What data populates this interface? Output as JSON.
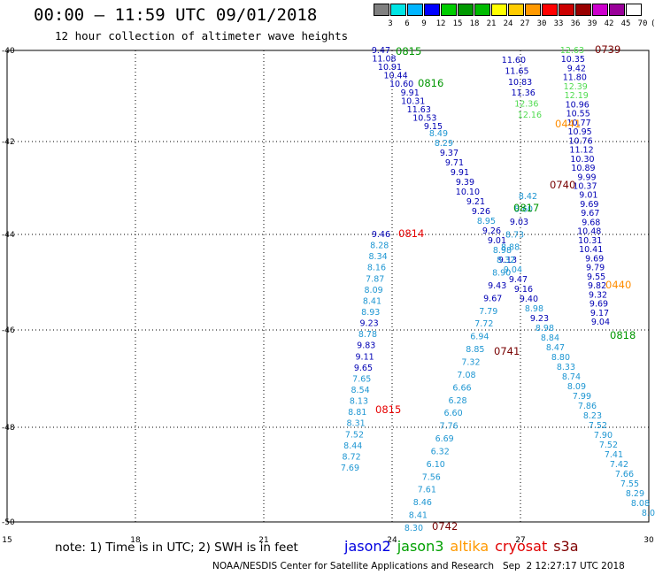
{
  "title": "00:00 – 11:59 UTC 09/01/2018",
  "subtitle": "12 hour collection of altimeter wave heights",
  "scale": {
    "labels": [
      "3",
      "6",
      "9",
      "12",
      "15",
      "18",
      "21",
      "24",
      "27",
      "30",
      "33",
      "36",
      "39",
      "42",
      "45",
      "70",
      "(ft)"
    ],
    "colors": [
      "#808080",
      "#00e5e5",
      "#00b5ff",
      "#0000ff",
      "#00cc00",
      "#009900",
      "#00bb00",
      "#ffff00",
      "#ffcc00",
      "#ff9900",
      "#ff0000",
      "#cc0000",
      "#990000",
      "#cc00cc",
      "#990099",
      "#ffffff"
    ]
  },
  "axes": {
    "x_ticks": [
      "15",
      "18",
      "21",
      "24",
      "27",
      "30"
    ],
    "y_ticks": [
      "-40",
      "-42",
      "-44",
      "-46",
      "-48",
      "-50"
    ]
  },
  "colors": {
    "jason2": "#0000b4",
    "jason3": "#009600",
    "altika": "#ff8c00",
    "cryosat": "#e60000",
    "s3a": "#780000",
    "light": "#1e96d2",
    "pale": "#50dc50"
  },
  "tracks": [
    {
      "id": "j2-0815-0816",
      "sat": "jason2",
      "shade": "dark",
      "time": "0815",
      "values": [
        "9.47",
        "11.08",
        "10.91",
        "10.44",
        "10.60",
        "9.91",
        "10.31",
        "11.63",
        "10.53",
        "9.15"
      ]
    },
    {
      "id": "j2-0816-cont",
      "sat": "jason2",
      "shade": "mixed",
      "time": "0816",
      "values": [
        "8.49",
        "8.29",
        "9.37",
        "9.71",
        "9.91",
        "9.39",
        "10.10",
        "9.21",
        "9.26",
        "8.95",
        "9.26",
        "9.01",
        "8.98",
        "9.13",
        "9.04",
        "9.47",
        "9.16",
        "9.40",
        "8.98",
        "9.23",
        "8.98",
        "8.84",
        "8.47",
        "8.80",
        "8.33",
        "8.74",
        "8.09",
        "7.99",
        "7.86",
        "8.23",
        "7.52",
        "7.90",
        "7.52",
        "7.41",
        "7.42",
        "7.66",
        "7.55",
        "8.29",
        "8.08",
        "8.0"
      ]
    },
    {
      "id": "s3a-0739",
      "sat": "s3a",
      "time": "0739",
      "values": [
        "12.63",
        "10.35",
        "9.42",
        "11.80",
        "12.39",
        "12.19",
        "10.96",
        "10.55",
        "10.77",
        "10.95",
        "10.76",
        "11.12",
        "10.30",
        "10.89",
        "9.99",
        "10.37",
        "9.01",
        "9.69",
        "9.67",
        "9.68",
        "10.48",
        "10.31",
        "10.41",
        "9.69",
        "9.79",
        "9.55",
        "9.82",
        "9.32",
        "9.69",
        "9.17",
        "9.04"
      ]
    },
    {
      "id": "s3a-0739-left",
      "sat": "s3a",
      "time": "0739",
      "values": [
        "11.60",
        "11.65",
        "10.83",
        "11.36",
        "12.36",
        "12.16"
      ]
    },
    {
      "id": "j2-0814",
      "sat": "jason2",
      "time": "0814",
      "values": [
        "9.46",
        "8.28",
        "8.34",
        "8.16",
        "7.87",
        "8.09",
        "8.41",
        "8.93",
        "9.23",
        "8.78",
        "9.83",
        "9.11",
        "9.65",
        "7.65",
        "8.54",
        "8.13",
        "8.81",
        "8.31",
        "7.52",
        "8.44",
        "8.72",
        "7.69"
      ]
    },
    {
      "id": "j2-0741",
      "sat": "jason2",
      "time": "0741",
      "values": [
        "8.42",
        "8.60",
        "9.03",
        "8.73",
        "8.88",
        "8.32",
        "8.90",
        "9.43",
        "9.67",
        "7.79",
        "7.72",
        "6.94",
        "8.85",
        "7.32",
        "7.08",
        "6.66",
        "6.28",
        "6.60",
        "7.76",
        "6.69",
        "6.32",
        "6.10",
        "7.56",
        "7.61",
        "8.46",
        "8.41",
        "8.30"
      ]
    }
  ],
  "time_labels": [
    {
      "text": "0815",
      "sat": "jason3"
    },
    {
      "text": "0816",
      "sat": "jason3"
    },
    {
      "text": "0739",
      "sat": "s3a"
    },
    {
      "text": "0441",
      "sat": "altika"
    },
    {
      "text": "0740",
      "sat": "s3a"
    },
    {
      "text": "0817",
      "sat": "jason3"
    },
    {
      "text": "0814",
      "sat": "cryosat"
    },
    {
      "text": "0440",
      "sat": "altika"
    },
    {
      "text": "0818",
      "sat": "jason3"
    },
    {
      "text": "0741",
      "sat": "s3a"
    },
    {
      "text": "0815",
      "sat": "cryosat"
    },
    {
      "text": "0742",
      "sat": "s3a"
    }
  ],
  "note": "note: 1) Time is in UTC; 2) SWH is in feet",
  "legend": [
    {
      "name": "jason2",
      "color": "#0000e0"
    },
    {
      "name": "jason3",
      "color": "#00a000"
    },
    {
      "name": "altika",
      "color": "#ff9900"
    },
    {
      "name": "cryosat",
      "color": "#e00000"
    },
    {
      "name": "s3a",
      "color": "#800000"
    }
  ],
  "footer": "NOAA/NESDIS Center for Satellite Applications and Research   Sep  2 12:27:17 UTC 2018"
}
